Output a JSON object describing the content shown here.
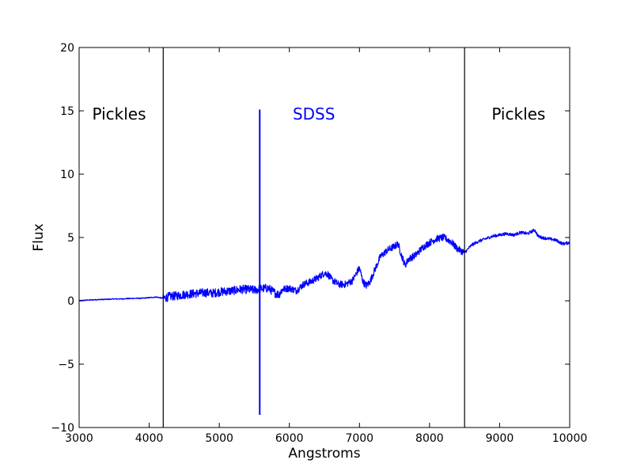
{
  "chart_data": {
    "type": "line",
    "title": "",
    "xlabel": "Angstroms",
    "ylabel": "Flux",
    "xlim": [
      3000,
      10000
    ],
    "ylim": [
      -10,
      20
    ],
    "grid": false,
    "xticks": [
      3000,
      4000,
      5000,
      6000,
      7000,
      8000,
      9000,
      10000
    ],
    "yticks": [
      -10,
      -5,
      0,
      5,
      10,
      15,
      20
    ],
    "xtick_labels": [
      "3000",
      "4000",
      "5000",
      "6000",
      "7000",
      "8000",
      "9000",
      "10000"
    ],
    "ytick_labels": [
      "−10",
      "−5",
      "0",
      "5",
      "10",
      "15",
      "20"
    ],
    "vlines": [
      4200,
      8500
    ],
    "spike": {
      "x": 5577,
      "y_top": 15.1,
      "y_bottom": -9.0
    },
    "annotations": [
      {
        "text": "Pickles",
        "x": 3570,
        "y": 14.3,
        "color": "#000000"
      },
      {
        "text": "SDSS",
        "x": 6350,
        "y": 14.3,
        "color": "#0000ff"
      },
      {
        "text": "Pickles",
        "x": 9270,
        "y": 14.3,
        "color": "#000000"
      }
    ],
    "series": [
      {
        "color": "#0000ff",
        "x": [
          3000,
          3100,
          3200,
          3300,
          3400,
          3500,
          3600,
          3700,
          3800,
          3900,
          4000,
          4100,
          4200,
          4300,
          4400,
          4500,
          4600,
          4700,
          4800,
          4900,
          5000,
          5100,
          5200,
          5300,
          5400,
          5500,
          5600,
          5700,
          5800,
          5850,
          5900,
          6000,
          6100,
          6200,
          6300,
          6400,
          6500,
          6550,
          6600,
          6700,
          6800,
          6900,
          7000,
          7050,
          7100,
          7150,
          7200,
          7300,
          7400,
          7500,
          7550,
          7600,
          7650,
          7700,
          7800,
          7900,
          8000,
          8100,
          8200,
          8300,
          8400,
          8500,
          8600,
          8700,
          8800,
          8900,
          9000,
          9100,
          9200,
          9300,
          9400,
          9500,
          9550,
          9600,
          9700,
          9800,
          9900,
          10000
        ],
        "values": [
          0.0,
          0.05,
          0.08,
          0.1,
          0.12,
          0.15,
          0.15,
          0.18,
          0.2,
          0.2,
          0.25,
          0.3,
          0.2,
          0.35,
          0.4,
          0.5,
          0.55,
          0.6,
          0.65,
          0.6,
          0.7,
          0.75,
          0.8,
          0.9,
          0.9,
          0.85,
          0.95,
          1.0,
          0.6,
          0.5,
          0.9,
          1.0,
          0.8,
          1.3,
          1.5,
          1.8,
          2.2,
          2.1,
          1.7,
          1.3,
          1.3,
          1.6,
          2.6,
          1.5,
          1.2,
          1.5,
          2.2,
          3.5,
          4.0,
          4.3,
          4.5,
          3.6,
          2.8,
          3.3,
          3.6,
          4.2,
          4.6,
          4.9,
          5.0,
          4.7,
          4.1,
          3.8,
          4.4,
          4.7,
          4.9,
          5.1,
          5.2,
          5.3,
          5.2,
          5.4,
          5.3,
          5.6,
          5.1,
          5.0,
          4.9,
          4.8,
          4.5,
          4.6
        ]
      }
    ]
  }
}
